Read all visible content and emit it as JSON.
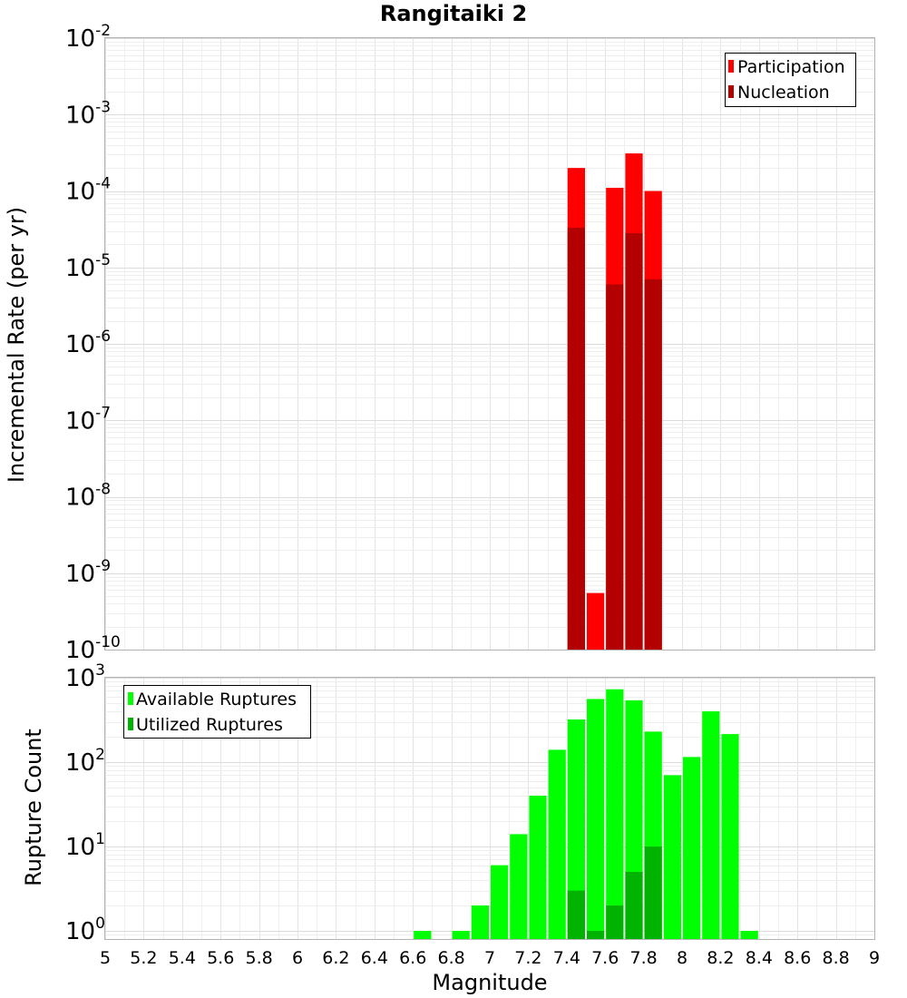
{
  "chart_data": [
    {
      "type": "bar",
      "title": "Rangitaiki 2",
      "xlabel": "",
      "ylabel": "Incremental Rate (per yr)",
      "xlim": [
        5,
        9
      ],
      "ylim": [
        1e-10,
        0.01
      ],
      "yscale": "log",
      "grid": true,
      "legend_position": "top-right",
      "yticks": [
        {
          "base": "10",
          "exp": "-2",
          "value": 0.01
        },
        {
          "base": "10",
          "exp": "-3",
          "value": 0.001
        },
        {
          "base": "10",
          "exp": "-4",
          "value": 0.0001
        },
        {
          "base": "10",
          "exp": "-5",
          "value": 1e-05
        },
        {
          "base": "10",
          "exp": "-6",
          "value": 1e-06
        },
        {
          "base": "10",
          "exp": "-7",
          "value": 1e-07
        },
        {
          "base": "10",
          "exp": "-8",
          "value": 1e-08
        },
        {
          "base": "10",
          "exp": "-9",
          "value": 1e-09
        },
        {
          "base": "10",
          "exp": "-10",
          "value": 1e-10
        }
      ],
      "series": [
        {
          "name": "Participation",
          "color": "#ff0000",
          "x": [
            7.45,
            7.55,
            7.65,
            7.75,
            7.85
          ],
          "values": [
            0.0002,
            5.5e-10,
            0.00011,
            0.00031,
            0.0001
          ]
        },
        {
          "name": "Nucleation",
          "color": "#b30000",
          "x": [
            7.45,
            7.65,
            7.75,
            7.85
          ],
          "values": [
            3.3e-05,
            6e-06,
            2.8e-05,
            7e-06
          ]
        }
      ]
    },
    {
      "type": "bar",
      "title": "",
      "xlabel": "Magnitude",
      "ylabel": "Rupture Count",
      "xlim": [
        5,
        9
      ],
      "ylim": [
        0.8,
        1000
      ],
      "yscale": "log",
      "grid": true,
      "legend_position": "top-left",
      "yticks": [
        {
          "base": "10",
          "exp": "3",
          "value": 1000
        },
        {
          "base": "10",
          "exp": "2",
          "value": 100
        },
        {
          "base": "10",
          "exp": "1",
          "value": 10
        },
        {
          "base": "10",
          "exp": "0",
          "value": 1
        }
      ],
      "xticks": [
        "5",
        "5.2",
        "5.4",
        "5.6",
        "5.8",
        "6",
        "6.2",
        "6.4",
        "6.6",
        "6.8",
        "7",
        "7.2",
        "7.4",
        "7.6",
        "7.8",
        "8",
        "8.2",
        "8.4",
        "8.6",
        "8.8",
        "9"
      ],
      "series": [
        {
          "name": "Available Ruptures",
          "color": "#00ff00",
          "x": [
            6.65,
            6.85,
            6.95,
            7.05,
            7.15,
            7.25,
            7.35,
            7.45,
            7.55,
            7.65,
            7.75,
            7.85,
            7.95,
            8.05,
            8.15,
            8.25,
            8.35
          ],
          "values": [
            1,
            1,
            2,
            6,
            14,
            40,
            140,
            320,
            560,
            730,
            540,
            230,
            70,
            115,
            400,
            215,
            1
          ]
        },
        {
          "name": "Utilized Ruptures",
          "color": "#00b300",
          "x": [
            7.45,
            7.55,
            7.65,
            7.75,
            7.85
          ],
          "values": [
            3,
            1,
            2,
            5,
            10
          ]
        }
      ]
    }
  ]
}
